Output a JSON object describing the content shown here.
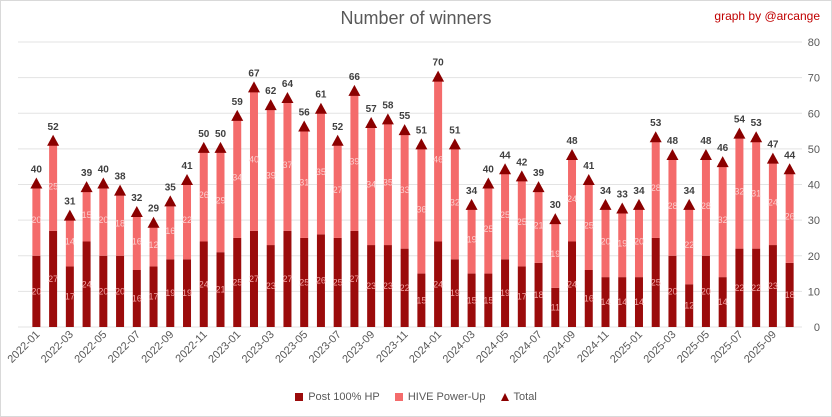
{
  "title": "Number of winners",
  "credit": "graph by @arcange",
  "colors": {
    "post": "#9b0b0b",
    "powerup": "#f46b6b",
    "total": "#8b0000",
    "grid": "#e3e3e3"
  },
  "chart_data": {
    "type": "bar",
    "stacked": true,
    "title": "Number of winners",
    "ylim": [
      0,
      80
    ],
    "yticks": [
      0,
      10,
      20,
      30,
      40,
      50,
      60,
      70,
      80
    ],
    "y_axis_side": "right",
    "grid": true,
    "legend_position": "bottom",
    "categories": [
      "2022-01",
      "2022-02",
      "2022-03",
      "2022-04",
      "2022-05",
      "2022-06",
      "2022-07",
      "2022-08",
      "2022-09",
      "2022-10",
      "2022-11",
      "2022-12",
      "2023-01",
      "2023-02",
      "2023-03",
      "2023-04",
      "2023-05",
      "2023-06",
      "2023-07",
      "2023-08",
      "2023-09",
      "2023-10",
      "2023-11",
      "2023-12",
      "2024-01",
      "2024-02",
      "2024-03",
      "2024-04",
      "2024-05",
      "2024-06",
      "2024-07",
      "2024-08",
      "2024-09",
      "2024-10",
      "2024-11",
      "2024-12",
      "2025-01",
      "2025-02",
      "2025-03",
      "2025-04",
      "2025-05",
      "2025-06",
      "2025-07",
      "2025-08",
      "2025-09",
      "2025-10"
    ],
    "shown_tick_labels": [
      "2022-01",
      "2022-03",
      "2022-05",
      "2022-07",
      "2022-09",
      "2022-11",
      "2023-01",
      "2023-03",
      "2023-05",
      "2023-07",
      "2023-09",
      "2023-11",
      "2024-01",
      "2024-03",
      "2024-05",
      "2024-07",
      "2024-09",
      "2024-11",
      "2025-01",
      "2025-03",
      "2025-05",
      "2025-07",
      "2025-09"
    ],
    "series": [
      {
        "name": "Post 100% HP",
        "kind": "bar",
        "values": [
          20,
          27,
          17,
          24,
          20,
          20,
          16,
          17,
          19,
          19,
          24,
          21,
          25,
          27,
          23,
          27,
          25,
          26,
          25,
          27,
          23,
          23,
          22,
          15,
          24,
          19,
          15,
          15,
          19,
          17,
          18,
          11,
          24,
          16,
          14,
          14,
          14,
          25,
          20,
          12,
          20,
          14,
          22,
          22,
          23,
          18
        ]
      },
      {
        "name": "HIVE Power-Up",
        "kind": "bar",
        "values": [
          20,
          25,
          14,
          15,
          20,
          18,
          16,
          12,
          16,
          22,
          26,
          29,
          34,
          40,
          39,
          37,
          31,
          35,
          27,
          39,
          34,
          35,
          33,
          36,
          46,
          32,
          19,
          25,
          25,
          25,
          21,
          19,
          24,
          25,
          20,
          19,
          20,
          28,
          28,
          22,
          28,
          32,
          32,
          31,
          24,
          26
        ]
      },
      {
        "name": "Total",
        "kind": "marker",
        "values": [
          40,
          52,
          31,
          39,
          40,
          38,
          32,
          29,
          35,
          41,
          50,
          50,
          59,
          67,
          62,
          64,
          56,
          61,
          52,
          66,
          57,
          58,
          55,
          51,
          70,
          51,
          34,
          40,
          44,
          42,
          39,
          30,
          48,
          41,
          34,
          33,
          34,
          53,
          48,
          34,
          48,
          46,
          54,
          53,
          47,
          44
        ]
      }
    ]
  }
}
